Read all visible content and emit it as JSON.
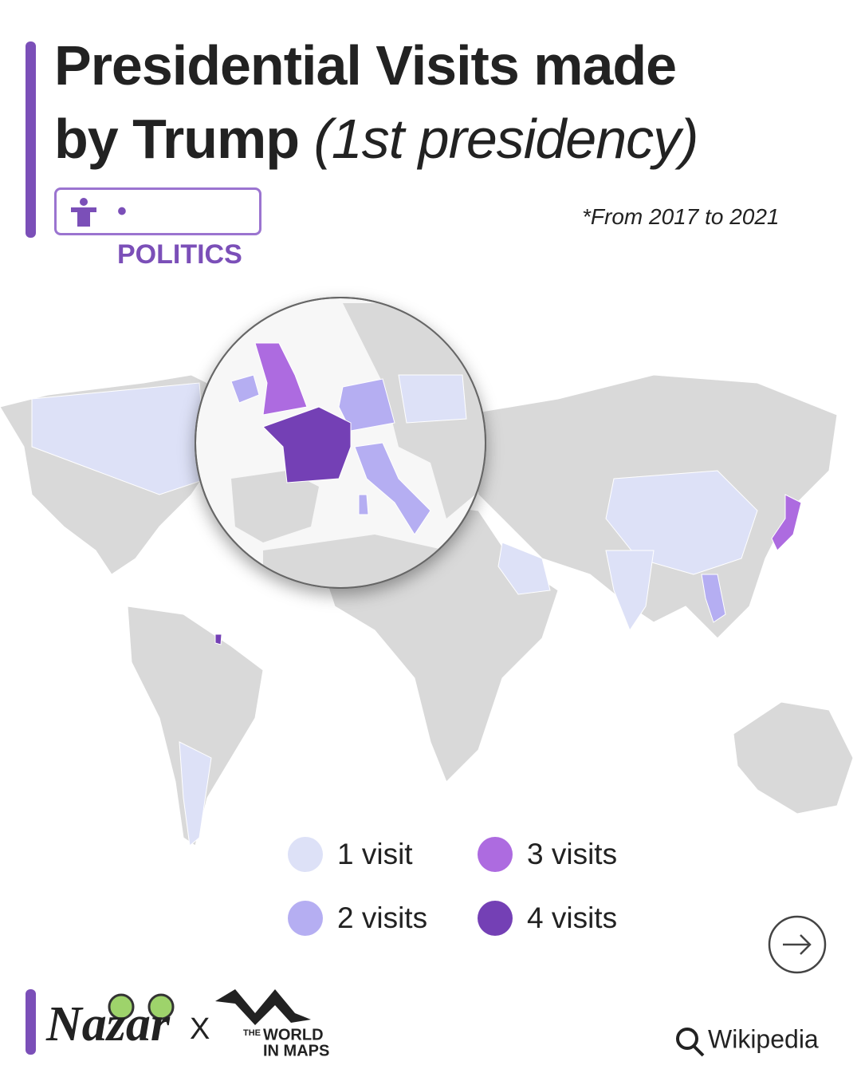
{
  "header": {
    "title_line_1": "Presidential Visits made",
    "title_line_2": "by Trump",
    "title_italic": "(1st presidency)",
    "tag": "• POLITICS",
    "note": "*From 2017 to 2021"
  },
  "legend": [
    {
      "label": "1 visit",
      "color": "#dde1f7"
    },
    {
      "label": "2 visits",
      "color": "#b5aef2"
    },
    {
      "label": "3 visits",
      "color": "#ad6be0"
    },
    {
      "label": "4 visits",
      "color": "#7440b5"
    }
  ],
  "footer": {
    "brand": "Nazar",
    "separator": "X",
    "partner_1": "THE",
    "partner_2": "WORLD",
    "partner_3": "IN MAPS",
    "source": "Wikipedia"
  }
}
